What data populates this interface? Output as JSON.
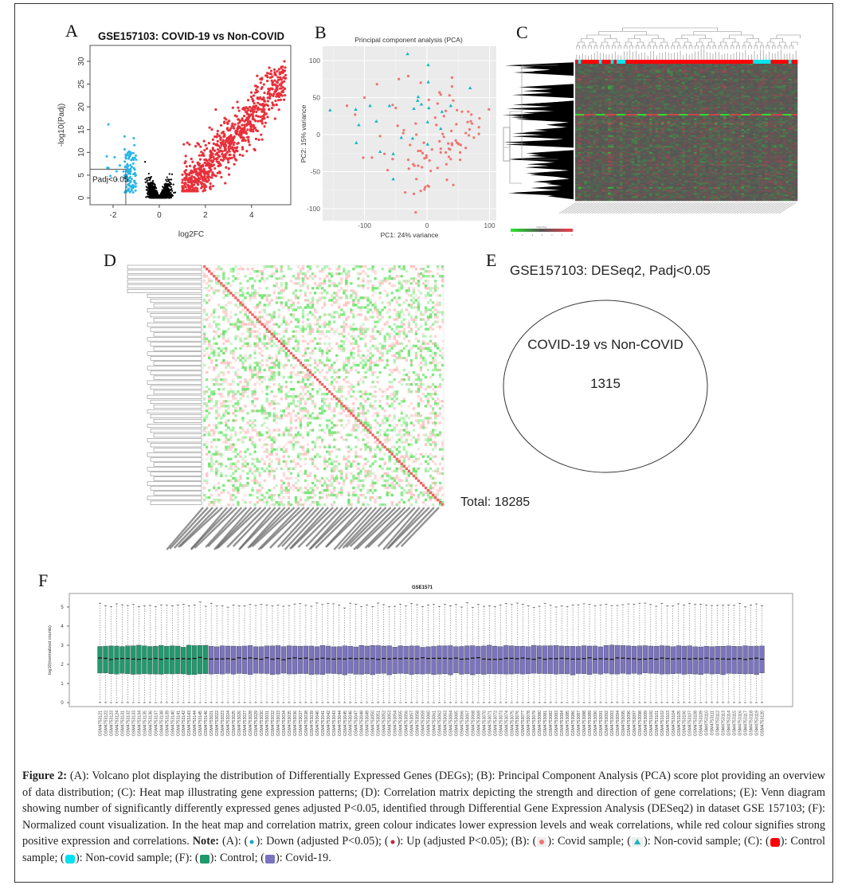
{
  "panel_labels": {
    "a": "A",
    "b": "B",
    "c": "C",
    "d": "D",
    "e": "E",
    "f": "F"
  },
  "chart_data": [
    {
      "panel": "A",
      "type": "scatter",
      "title": "GSE157103: COVID-19 vs Non-COVID",
      "xlabel": "log2FC",
      "ylabel": "-log10(Padj)",
      "xlim": [
        -3,
        5.7
      ],
      "ylim": [
        -1.5,
        33.5
      ],
      "xticks": [
        -2,
        0,
        2,
        4
      ],
      "yticks": [
        0,
        5,
        10,
        15,
        20,
        25,
        30
      ],
      "threshold_label": "Padj<0.05",
      "log2fc_threshold": 1,
      "colors": {
        "down": "#29b6e8",
        "up": "#e8303a",
        "ns": "#000000"
      }
    },
    {
      "panel": "B",
      "type": "scatter",
      "title": "Principal component analysis (PCA)",
      "xlabel": "PC1: 24% variance",
      "ylabel": "PC2: 15% variance",
      "xlim": [
        -165,
        110
      ],
      "ylim": [
        -113,
        120
      ],
      "xticks": [
        -100,
        0,
        100
      ],
      "yticks": [
        -100,
        -50,
        0,
        50,
        100
      ],
      "grid": true,
      "colors": {
        "covid": "#f07470",
        "noncovid": "#13b5c4"
      },
      "series": [
        {
          "group": "noncovid",
          "marker": "triangle",
          "points": [
            [
              -31,
              109
            ],
            [
              2,
              94
            ],
            [
              2,
              71
            ],
            [
              69,
              63
            ],
            [
              -14,
              51
            ],
            [
              -15,
              46
            ],
            [
              -9,
              41
            ],
            [
              -21,
              35
            ],
            [
              3,
              36
            ],
            [
              38,
              39
            ],
            [
              24,
              31
            ],
            [
              1,
              17
            ],
            [
              22,
              8
            ],
            [
              1,
              -13
            ],
            [
              -23,
              -5
            ],
            [
              -41,
              -4
            ],
            [
              -54,
              -26
            ],
            [
              -75,
              -23
            ],
            [
              -54,
              -60
            ],
            [
              -60,
              39
            ],
            [
              -91,
              39
            ],
            [
              -114,
              34
            ],
            [
              -155,
              33
            ],
            [
              -81,
              18
            ],
            [
              -109,
              13
            ],
            [
              -113,
              -11
            ]
          ]
        },
        {
          "group": "covid",
          "marker": "circle",
          "points": [
            [
              -128,
              39
            ],
            [
              -100,
              50
            ],
            [
              -115,
              27
            ],
            [
              -80,
              68
            ],
            [
              -45,
              75
            ],
            [
              -30,
              79
            ],
            [
              -10,
              70
            ],
            [
              -55,
              40
            ],
            [
              -50,
              36
            ],
            [
              -47,
              12
            ],
            [
              -37,
              6
            ],
            [
              -38,
              2
            ],
            [
              -18,
              15
            ],
            [
              -17,
              0
            ],
            [
              -75,
              -2
            ],
            [
              -102,
              -31
            ],
            [
              -88,
              -31
            ],
            [
              -68,
              -26
            ],
            [
              -63,
              -48
            ],
            [
              -55,
              -33
            ],
            [
              -27,
              -14
            ],
            [
              -30,
              -34
            ],
            [
              -29,
              -46
            ],
            [
              -20,
              -42
            ],
            [
              -14,
              -42
            ],
            [
              -14,
              -22
            ],
            [
              -10,
              -22
            ],
            [
              -7,
              -25
            ],
            [
              -5,
              -11
            ],
            [
              -8,
              -44
            ],
            [
              -4,
              -32
            ],
            [
              -1,
              -28
            ],
            [
              -1,
              -31
            ],
            [
              4,
              -35
            ],
            [
              -17,
              -60
            ],
            [
              -35,
              -78
            ],
            [
              -21,
              -80
            ],
            [
              -10,
              -76
            ],
            [
              -4,
              -74
            ],
            [
              -3,
              -71
            ],
            [
              1,
              -69
            ],
            [
              3,
              -70
            ],
            [
              6,
              -49
            ],
            [
              8,
              -20
            ],
            [
              -18,
              -105
            ],
            [
              3,
              47
            ],
            [
              20,
              57
            ],
            [
              17,
              42
            ],
            [
              22,
              54
            ],
            [
              36,
              53
            ],
            [
              40,
              77
            ],
            [
              40,
              65
            ],
            [
              42,
              46
            ],
            [
              30,
              32
            ],
            [
              27,
              25
            ],
            [
              13,
              23
            ],
            [
              15,
              13
            ],
            [
              20,
              -9
            ],
            [
              25,
              1
            ],
            [
              34,
              -12
            ],
            [
              35,
              -19
            ],
            [
              37,
              -20
            ],
            [
              40,
              -12
            ],
            [
              40,
              -14
            ],
            [
              46,
              -8
            ],
            [
              48,
              -11
            ],
            [
              50,
              -12
            ],
            [
              51,
              -13
            ],
            [
              54,
              -14
            ],
            [
              22,
              -19
            ],
            [
              22,
              -24
            ],
            [
              30,
              -24
            ],
            [
              35,
              -30
            ],
            [
              38,
              -33
            ],
            [
              31,
              -40
            ],
            [
              17,
              -45
            ],
            [
              32,
              -61
            ],
            [
              42,
              -68
            ],
            [
              53,
              -24
            ],
            [
              53,
              -34
            ],
            [
              62,
              -18
            ],
            [
              47,
              14
            ],
            [
              48,
              33
            ],
            [
              56,
              31
            ],
            [
              62,
              2
            ],
            [
              66,
              31
            ],
            [
              65,
              17
            ],
            [
              67,
              -1
            ],
            [
              68,
              7
            ],
            [
              70,
              18
            ],
            [
              72,
              15
            ],
            [
              71,
              27
            ],
            [
              75,
              -4
            ],
            [
              84,
              22
            ],
            [
              83,
              10
            ],
            [
              83,
              1
            ],
            [
              99,
              34
            ],
            [
              39,
              5
            ],
            [
              -22,
              -40
            ],
            [
              27,
              -3
            ]
          ]
        }
      ]
    },
    {
      "panel": "C",
      "type": "heatmap",
      "color_key_title": "Color Key",
      "color_key_ticks": [
        "-3",
        "-2",
        "-1",
        "0",
        "1",
        "2",
        "3"
      ],
      "colors": {
        "low": "#3ee83e",
        "mid": "#555555",
        "high": "#ee4a4a",
        "control": "#ff0000",
        "noncovid": "#00e5ee"
      }
    },
    {
      "panel": "D",
      "type": "heatmap",
      "colors": {
        "low": "#33dd33",
        "high": "#ff6a6a"
      }
    },
    {
      "panel": "E",
      "type": "venn",
      "title": "GSE157103: DESeq2, Padj<0.05",
      "set": "COVID-19 vs Non-COVID",
      "count": "1315",
      "total": "Total: 18285"
    },
    {
      "panel": "F",
      "type": "box",
      "title": "GSE1571",
      "ylabel": "log10(normalized counts)",
      "ylim": [
        0,
        5.5
      ],
      "yticks": [
        0,
        1,
        2,
        3,
        4,
        5
      ],
      "colors": {
        "control": "#1f9a6e",
        "covid": "#7b74c0"
      },
      "typical": {
        "min": 0,
        "q1": 1.5,
        "median": 2.3,
        "q3": 2.95,
        "max": 5.1
      },
      "groups": [
        {
          "name": "Control",
          "samples": [
            "GSM4753121",
            "GSM4753122",
            "GSM4753123",
            "GSM4753124",
            "GSM4753131",
            "GSM4753132",
            "GSM4753133",
            "GSM4753134",
            "GSM4753135",
            "GSM4753136",
            "GSM4753137",
            "GSM4753138",
            "GSM4753139",
            "GSM4753140",
            "GSM4753141",
            "GSM4753142",
            "GSM4753143",
            "GSM4753144",
            "GSM4753145",
            "GSM4753146"
          ]
        },
        {
          "name": "Covid-19",
          "samples": [
            "GSM4753021",
            "GSM4753022",
            "GSM4753023",
            "GSM4753024",
            "GSM4753025",
            "GSM4753026",
            "GSM4753027",
            "GSM4753028",
            "GSM4753029",
            "GSM4753030",
            "GSM4753031",
            "GSM4753032",
            "GSM4753033",
            "GSM4753034",
            "GSM4753035",
            "GSM4753036",
            "GSM4753037",
            "GSM4753038",
            "GSM4753039",
            "GSM4753040",
            "GSM4753041",
            "GSM4753042",
            "GSM4753043",
            "GSM4753044",
            "GSM4753045",
            "GSM4753046",
            "GSM4753047",
            "GSM4753048",
            "GSM4753049",
            "GSM4753050",
            "GSM4753051",
            "GSM4753052",
            "GSM4753053",
            "GSM4753054",
            "GSM4753055",
            "GSM4753056",
            "GSM4753057",
            "GSM4753058",
            "GSM4753059",
            "GSM4753060",
            "GSM4753061",
            "GSM4753062",
            "GSM4753063",
            "GSM4753064",
            "GSM4753065",
            "GSM4753066",
            "GSM4753067",
            "GSM4753068",
            "GSM4753069",
            "GSM4753070",
            "GSM4753071",
            "GSM4753072",
            "GSM4753073",
            "GSM4753074",
            "GSM4753075",
            "GSM4753076",
            "GSM4753077",
            "GSM4753078",
            "GSM4753079",
            "GSM4753080",
            "GSM4753081",
            "GSM4753082",
            "GSM4753083",
            "GSM4753084",
            "GSM4753085",
            "GSM4753086",
            "GSM4753087",
            "GSM4753088",
            "GSM4753089",
            "GSM4753090",
            "GSM4753091",
            "GSM4753092",
            "GSM4753093",
            "GSM4753094",
            "GSM4753095",
            "GSM4753096",
            "GSM4753097",
            "GSM4753098",
            "GSM4753099",
            "GSM4753100",
            "GSM4753101",
            "GSM4753102",
            "GSM4753103",
            "GSM4753104",
            "GSM4753105",
            "GSM4753106",
            "GSM4753107",
            "GSM4753108",
            "GSM4753109",
            "GSM4753110",
            "GSM4753111",
            "GSM4753112",
            "GSM4753113",
            "GSM4753114",
            "GSM4753115",
            "GSM4753116",
            "GSM4753117",
            "GSM4753118",
            "GSM4753119",
            "GSM4753120"
          ]
        }
      ]
    }
  ],
  "caption": {
    "fig": "Figure 2:",
    "body": " (A): Volcano plot displaying the distribution of Differentially Expressed Genes (DEGs); (B): Principal Component Analysis (PCA) score plot providing an overview of data distribution; (C): Heat map illustrating gene expression patterns; (D): Correlation matrix depicting the strength and direction of gene correlations; (E): Venn diagram showing number of significantly differently expressed genes adjusted P<0.05, identified through Differential Gene Expression Analysis (DESeq2) in dataset GSE 157103; (F): Normalized count visualization. In the heat map and correlation matrix, green colour indicates lower expression levels and weak correlations, while red colour signifies strong positive expression and correlations. ",
    "note": "Note:",
    "n1": " (A): (",
    "n2": "): Down (adjusted P<0.05); (",
    "n3": "): Up (adjusted P<0.05); (B): (",
    "n4": "): Covid sample; (",
    "n5": "): Non-covid sample; (C): (",
    "n6": "): Control sample; (",
    "n7": "): Non-covid sample; (F): (",
    "n8": "): Control; (",
    "n9": "): Covid-19."
  }
}
